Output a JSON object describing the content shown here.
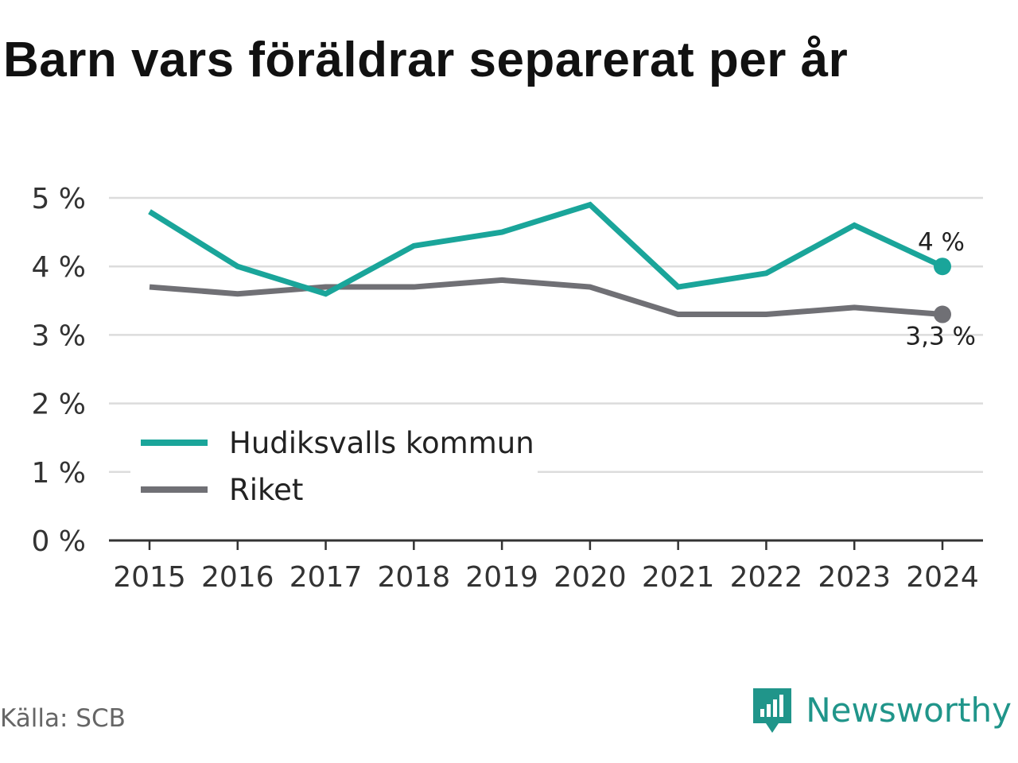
{
  "title": "Barn vars föräldrar separerat per år",
  "source": "Källa: SCB",
  "brand": {
    "name": "Newsworthy",
    "icon": "newsworthy-logo-icon"
  },
  "colors": {
    "series1": "#1aa59a",
    "series2": "#707075",
    "grid": "#dcdcdc",
    "axis": "#333333",
    "text": "#333333"
  },
  "chart_data": {
    "type": "line",
    "x": [
      "2015",
      "2016",
      "2017",
      "2018",
      "2019",
      "2020",
      "2021",
      "2022",
      "2023",
      "2024"
    ],
    "ylim": [
      0,
      5
    ],
    "yticks": [
      0,
      1,
      2,
      3,
      4,
      5
    ],
    "ytick_labels": [
      "0 %",
      "1 %",
      "2 %",
      "3 %",
      "4 %",
      "5 %"
    ],
    "grid": true,
    "legend_position": "bottom-left",
    "series": [
      {
        "name": "Hudiksvalls kommun",
        "color": "#1aa59a",
        "values": [
          4.8,
          4.0,
          3.6,
          4.3,
          4.5,
          4.9,
          3.7,
          3.9,
          4.6,
          4.0
        ],
        "end_label": "4 %"
      },
      {
        "name": "Riket",
        "color": "#707075",
        "values": [
          3.7,
          3.6,
          3.7,
          3.7,
          3.8,
          3.7,
          3.3,
          3.3,
          3.4,
          3.3
        ],
        "end_label": "3,3 %"
      }
    ]
  }
}
